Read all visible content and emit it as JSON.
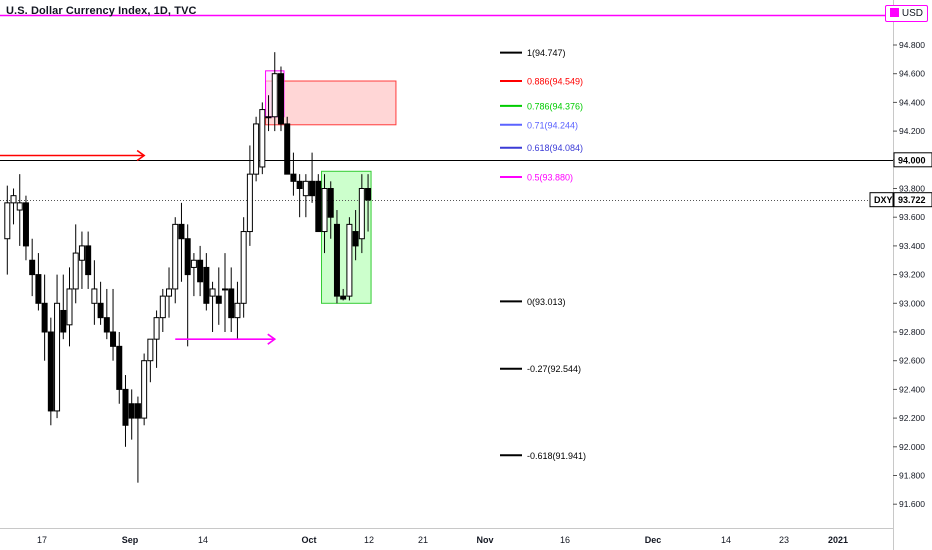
{
  "header": {
    "title": "U.S. Dollar Currency Index, 1D, TVC",
    "currency": "USD"
  },
  "colors": {
    "bull_body": "#ffffff",
    "bear_body": "#000000",
    "wick": "#000000",
    "fib_1": "#000000",
    "fib_0886": "#ff0000",
    "fib_0786": "#00cc00",
    "fib_071": "#5b63ff",
    "fib_0618": "#3b3bd6",
    "fib_05": "#ff00ff",
    "magenta": "#ff00ff",
    "red_arrow": "#ff0000",
    "supply_fill": "#ffd6d6",
    "supply_border": "#ff3b3b",
    "demand_fill": "#ccffcc",
    "demand_border": "#33cc33"
  },
  "chart_data": {
    "type": "candlestick",
    "symbol": "DXY",
    "last_price": "93.722",
    "price_axis": {
      "ticks": [
        "94.800",
        "94.600",
        "94.400",
        "94.200",
        "94.000",
        "93.800",
        "93.600",
        "93.400",
        "93.200",
        "93.000",
        "92.800",
        "92.600",
        "92.400",
        "92.200",
        "92.000",
        "91.800",
        "91.600"
      ],
      "range": [
        91.5,
        95.1
      ]
    },
    "time_axis": {
      "labels": [
        "17",
        "Sep",
        "14",
        "Oct",
        "12",
        "21",
        "Nov",
        "16",
        "Dec",
        "14",
        "23",
        "2021"
      ]
    },
    "candles": [
      {
        "o": 93.45,
        "h": 93.82,
        "l": 93.2,
        "c": 93.7
      },
      {
        "o": 93.7,
        "h": 93.8,
        "l": 93.55,
        "c": 93.75
      },
      {
        "o": 93.65,
        "h": 93.9,
        "l": 93.4,
        "c": 93.7
      },
      {
        "o": 93.7,
        "h": 93.75,
        "l": 93.3,
        "c": 93.4
      },
      {
        "o": 93.3,
        "h": 93.45,
        "l": 93.05,
        "c": 93.2
      },
      {
        "o": 93.2,
        "h": 93.35,
        "l": 92.95,
        "c": 93.0
      },
      {
        "o": 93.0,
        "h": 93.2,
        "l": 92.6,
        "c": 92.8
      },
      {
        "o": 92.8,
        "h": 92.9,
        "l": 92.15,
        "c": 92.25
      },
      {
        "o": 92.25,
        "h": 93.2,
        "l": 92.2,
        "c": 93.0
      },
      {
        "o": 92.95,
        "h": 93.2,
        "l": 92.75,
        "c": 92.8
      },
      {
        "o": 92.85,
        "h": 93.25,
        "l": 92.7,
        "c": 93.1
      },
      {
        "o": 93.1,
        "h": 93.55,
        "l": 93.0,
        "c": 93.35
      },
      {
        "o": 93.3,
        "h": 93.5,
        "l": 93.1,
        "c": 93.4
      },
      {
        "o": 93.4,
        "h": 93.5,
        "l": 93.1,
        "c": 93.2
      },
      {
        "o": 93.0,
        "h": 93.3,
        "l": 92.85,
        "c": 93.1
      },
      {
        "o": 93.0,
        "h": 93.15,
        "l": 92.85,
        "c": 92.9
      },
      {
        "o": 92.9,
        "h": 93.1,
        "l": 92.75,
        "c": 92.8
      },
      {
        "o": 92.8,
        "h": 93.1,
        "l": 92.6,
        "c": 92.7
      },
      {
        "o": 92.7,
        "h": 92.8,
        "l": 92.3,
        "c": 92.4
      },
      {
        "o": 92.4,
        "h": 92.5,
        "l": 92.0,
        "c": 92.15
      },
      {
        "o": 92.3,
        "h": 92.4,
        "l": 92.05,
        "c": 92.2
      },
      {
        "o": 92.3,
        "h": 92.35,
        "l": 91.75,
        "c": 92.2
      },
      {
        "o": 92.2,
        "h": 92.65,
        "l": 92.15,
        "c": 92.6
      },
      {
        "o": 92.6,
        "h": 92.75,
        "l": 92.45,
        "c": 92.75
      },
      {
        "o": 92.75,
        "h": 92.95,
        "l": 92.55,
        "c": 92.9
      },
      {
        "o": 92.9,
        "h": 93.1,
        "l": 92.8,
        "c": 93.05
      },
      {
        "o": 93.05,
        "h": 93.25,
        "l": 92.9,
        "c": 93.1
      },
      {
        "o": 93.1,
        "h": 93.6,
        "l": 93.0,
        "c": 93.55
      },
      {
        "o": 93.55,
        "h": 93.7,
        "l": 93.15,
        "c": 93.45
      },
      {
        "o": 93.45,
        "h": 93.55,
        "l": 92.7,
        "c": 93.2
      },
      {
        "o": 93.25,
        "h": 93.35,
        "l": 93.05,
        "c": 93.3
      },
      {
        "o": 93.3,
        "h": 93.4,
        "l": 93.05,
        "c": 93.15
      },
      {
        "o": 93.25,
        "h": 93.35,
        "l": 92.95,
        "c": 93.0
      },
      {
        "o": 93.05,
        "h": 93.15,
        "l": 92.8,
        "c": 93.1
      },
      {
        "o": 93.05,
        "h": 93.25,
        "l": 92.85,
        "c": 93.0
      },
      {
        "o": 93.1,
        "h": 93.35,
        "l": 92.8,
        "c": 93.1
      },
      {
        "o": 93.1,
        "h": 93.25,
        "l": 92.8,
        "c": 92.9
      },
      {
        "o": 92.9,
        "h": 93.15,
        "l": 92.75,
        "c": 93.0
      },
      {
        "o": 93.0,
        "h": 93.6,
        "l": 92.9,
        "c": 93.5
      },
      {
        "o": 93.5,
        "h": 94.1,
        "l": 93.4,
        "c": 93.9
      },
      {
        "o": 93.9,
        "h": 94.3,
        "l": 93.85,
        "c": 94.25
      },
      {
        "o": 93.95,
        "h": 94.4,
        "l": 93.9,
        "c": 94.35
      },
      {
        "o": 94.3,
        "h": 94.45,
        "l": 94.2,
        "c": 94.3
      },
      {
        "o": 94.3,
        "h": 94.75,
        "l": 94.2,
        "c": 94.6
      },
      {
        "o": 94.6,
        "h": 94.65,
        "l": 94.2,
        "c": 94.25
      },
      {
        "o": 94.25,
        "h": 94.3,
        "l": 93.9,
        "c": 93.9
      },
      {
        "o": 93.9,
        "h": 94.05,
        "l": 93.75,
        "c": 93.85
      },
      {
        "o": 93.85,
        "h": 93.9,
        "l": 93.6,
        "c": 93.8
      },
      {
        "o": 93.75,
        "h": 93.9,
        "l": 93.6,
        "c": 93.85
      },
      {
        "o": 93.85,
        "h": 94.05,
        "l": 93.7,
        "c": 93.75
      },
      {
        "o": 93.85,
        "h": 93.9,
        "l": 93.5,
        "c": 93.5
      },
      {
        "o": 93.5,
        "h": 93.9,
        "l": 93.35,
        "c": 93.8
      },
      {
        "o": 93.8,
        "h": 93.85,
        "l": 93.45,
        "c": 93.6
      },
      {
        "o": 93.55,
        "h": 93.65,
        "l": 93.0,
        "c": 93.05
      },
      {
        "o": 93.05,
        "h": 93.1,
        "l": 93.02,
        "c": 93.03
      },
      {
        "o": 93.05,
        "h": 93.6,
        "l": 93.02,
        "c": 93.55
      },
      {
        "o": 93.5,
        "h": 93.65,
        "l": 93.3,
        "c": 93.4
      },
      {
        "o": 93.45,
        "h": 93.9,
        "l": 93.35,
        "c": 93.8
      },
      {
        "o": 93.8,
        "h": 93.9,
        "l": 93.5,
        "c": 93.72
      }
    ],
    "fib_levels": [
      {
        "ratio": "1",
        "price": 94.747,
        "label": "1(94.747)",
        "color": "#000000"
      },
      {
        "ratio": "0.886",
        "price": 94.549,
        "label": "0.886(94.549)",
        "color": "#ff0000"
      },
      {
        "ratio": "0.786",
        "price": 94.376,
        "label": "0.786(94.376)",
        "color": "#00cc00"
      },
      {
        "ratio": "0.71",
        "price": 94.244,
        "label": "0.71(94.244)",
        "color": "#5b63ff"
      },
      {
        "ratio": "0.618",
        "price": 94.084,
        "label": "0.618(94.084)",
        "color": "#3b3bd6"
      },
      {
        "ratio": "0.5",
        "price": 93.88,
        "label": "0.5(93.880)",
        "color": "#ff00ff"
      },
      {
        "ratio": "0",
        "price": 93.013,
        "label": "0(93.013)",
        "color": "#000000"
      },
      {
        "ratio": "-0.27",
        "price": 92.544,
        "label": "-0.27(92.544)",
        "color": "#000000"
      },
      {
        "ratio": "-0.618",
        "price": 91.941,
        "label": "-0.618(91.941)",
        "color": "#000000"
      }
    ],
    "horizontal_lines": [
      {
        "price": 94.0,
        "label": "94.000",
        "color": "#000000",
        "style": "solid"
      },
      {
        "price": 93.722,
        "label": "93.722",
        "color": "#000000",
        "style": "dotted"
      }
    ],
    "zones": [
      {
        "name": "supply",
        "top": 94.549,
        "bottom": 94.244,
        "candle_from": 42,
        "candle_to": 62,
        "fill": "#ffd6d6",
        "border": "#ff3b3b"
      },
      {
        "name": "demand",
        "top": 93.92,
        "bottom": 93.0,
        "candle_from": 51,
        "candle_to": 58,
        "fill": "#ccffcc",
        "border": "#33cc33"
      }
    ],
    "arrows": [
      {
        "name": "red-arrow",
        "price": 94.03,
        "from_candle": -1,
        "to_candle": 22,
        "color": "#ff0000"
      },
      {
        "name": "magenta-arrow",
        "price": 92.75,
        "from_candle": 27,
        "to_candle": 43,
        "color": "#ff00ff"
      }
    ],
    "top_line": {
      "price": 95.1,
      "color": "#ff00ff"
    }
  }
}
